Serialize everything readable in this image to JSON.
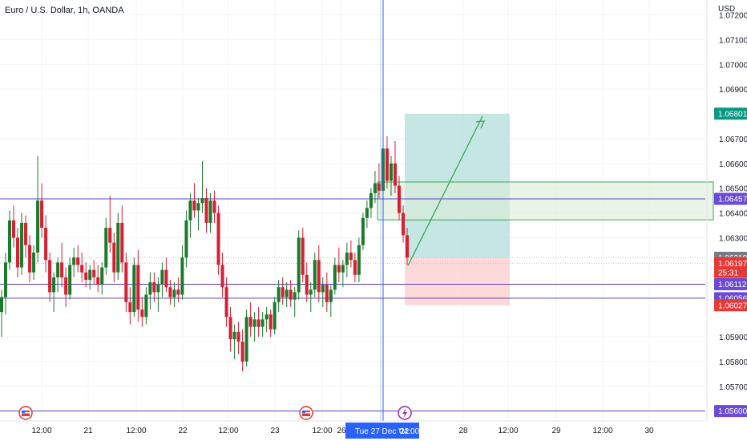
{
  "header": {
    "symbol_title": "Euro / U.S. Dollar, 1h, OANDA",
    "currency": "USD"
  },
  "colors": {
    "up": "#089981",
    "down": "#f23645",
    "candle_up": "#1b7a2b",
    "candle_down": "#d61f33",
    "level_line": "#5b3fc7",
    "label_purple": "#6b4ad6",
    "label_green": "#089981",
    "label_red": "#e53935",
    "label_gray": "#787b86",
    "crosshair": "#2962ff",
    "target_zone": "#b2dfdb",
    "stop_zone": "#fdd5d5",
    "demand_zone": "#dcefd9"
  },
  "icons": [
    "us-flag-icon",
    "us-flag-icon",
    "lightning-event-icon"
  ],
  "chart_data": {
    "type": "candlestick",
    "title": "Euro / U.S. Dollar, 1h, OANDA",
    "ylim": [
      1.0556,
      1.0726
    ],
    "y_ticks": [
      "1.07200",
      "1.07100",
      "1.07000",
      "1.06900",
      "1.06700",
      "1.06600",
      "1.06500",
      "1.06400",
      "1.06300",
      "1.05900",
      "1.05800",
      "1.05700"
    ],
    "x_ticks": [
      "12:00",
      "21",
      "12:00",
      "22",
      "12:00",
      "23",
      "12:00",
      "26",
      "28",
      "12:00",
      "29",
      "12:00",
      "30"
    ],
    "crosshair_label": "Tue 27 Dec '22",
    "crosshair_time": "04:00",
    "price_labels": [
      {
        "text": "1.06801",
        "price": 1.06801,
        "kind": "green"
      },
      {
        "text": "1.06457",
        "price": 1.06457,
        "kind": "purple"
      },
      {
        "text": "1.06219",
        "price": 1.06219,
        "kind": "gray"
      },
      {
        "text": "1.06197",
        "price": 1.06197,
        "kind": "red",
        "extra": "25:31"
      },
      {
        "text": "1.06112",
        "price": 1.06112,
        "kind": "purple"
      },
      {
        "text": "1.06056",
        "price": 1.06056,
        "kind": "purple"
      },
      {
        "text": "1.06027",
        "price": 1.06027,
        "kind": "red"
      },
      {
        "text": "1.05600",
        "price": 1.056,
        "kind": "purple"
      }
    ],
    "horizontal_levels": [
      1.06457,
      1.06112,
      1.06056,
      1.056
    ],
    "long_position": {
      "entry": 1.06219,
      "target": 1.06801,
      "stop": 1.06027
    },
    "demand_zone": {
      "top": 1.06525,
      "bottom": 1.06372
    },
    "candles": [
      [
        1.06,
        1.0609,
        1.059,
        1.0606
      ],
      [
        1.0606,
        1.0624,
        1.0599,
        1.062
      ],
      [
        1.062,
        1.0641,
        1.0617,
        1.0637
      ],
      [
        1.0637,
        1.0643,
        1.0626,
        1.063
      ],
      [
        1.063,
        1.0634,
        1.0614,
        1.0618
      ],
      [
        1.0618,
        1.064,
        1.0615,
        1.0636
      ],
      [
        1.0636,
        1.0639,
        1.0622,
        1.0627
      ],
      [
        1.0627,
        1.0631,
        1.0612,
        1.0616
      ],
      [
        1.0616,
        1.0627,
        1.0613,
        1.0624
      ],
      [
        1.0624,
        1.0663,
        1.062,
        1.0645
      ],
      [
        1.0645,
        1.0652,
        1.063,
        1.0634
      ],
      [
        1.0634,
        1.0639,
        1.0616,
        1.0621
      ],
      [
        1.0621,
        1.0624,
        1.0604,
        1.0608
      ],
      [
        1.0608,
        1.0616,
        1.06,
        1.0614
      ],
      [
        1.0614,
        1.0622,
        1.0608,
        1.062
      ],
      [
        1.062,
        1.0628,
        1.061,
        1.0614
      ],
      [
        1.0614,
        1.0618,
        1.0602,
        1.0607
      ],
      [
        1.0607,
        1.0622,
        1.0605,
        1.0619
      ],
      [
        1.0619,
        1.0626,
        1.0614,
        1.0622
      ],
      [
        1.0622,
        1.0627,
        1.0616,
        1.0619
      ],
      [
        1.0619,
        1.0624,
        1.0612,
        1.0616
      ],
      [
        1.0616,
        1.062,
        1.061,
        1.0613
      ],
      [
        1.0613,
        1.0619,
        1.0609,
        1.0617
      ],
      [
        1.0617,
        1.0621,
        1.0611,
        1.0614
      ],
      [
        1.0614,
        1.0619,
        1.0608,
        1.0611
      ],
      [
        1.0611,
        1.062,
        1.0607,
        1.0618
      ],
      [
        1.0618,
        1.0638,
        1.0615,
        1.0634
      ],
      [
        1.0634,
        1.0647,
        1.0624,
        1.0628
      ],
      [
        1.0628,
        1.0632,
        1.0612,
        1.0616
      ],
      [
        1.0616,
        1.064,
        1.0613,
        1.0636
      ],
      [
        1.0636,
        1.0643,
        1.0616,
        1.062
      ],
      [
        1.062,
        1.0624,
        1.06,
        1.0604
      ],
      [
        1.0604,
        1.061,
        1.0595,
        1.06
      ],
      [
        1.06,
        1.0622,
        1.0598,
        1.0619
      ],
      [
        1.0619,
        1.0625,
        1.0596,
        1.0601
      ],
      [
        1.0601,
        1.0606,
        1.0594,
        1.0598
      ],
      [
        1.0598,
        1.061,
        1.0595,
        1.0607
      ],
      [
        1.0607,
        1.0616,
        1.0601,
        1.0612
      ],
      [
        1.0612,
        1.0616,
        1.0604,
        1.0608
      ],
      [
        1.0608,
        1.0614,
        1.06,
        1.0611
      ],
      [
        1.0611,
        1.062,
        1.0606,
        1.0617
      ],
      [
        1.0617,
        1.0622,
        1.0608,
        1.061
      ],
      [
        1.061,
        1.0613,
        1.0603,
        1.0606
      ],
      [
        1.0606,
        1.0612,
        1.0602,
        1.0609
      ],
      [
        1.0609,
        1.0614,
        1.0604,
        1.0607
      ],
      [
        1.0607,
        1.0627,
        1.0605,
        1.0622
      ],
      [
        1.0622,
        1.0641,
        1.0618,
        1.0637
      ],
      [
        1.0637,
        1.0648,
        1.063,
        1.0645
      ],
      [
        1.0645,
        1.0652,
        1.0638,
        1.0641
      ],
      [
        1.0641,
        1.0646,
        1.0633,
        1.0644
      ],
      [
        1.0644,
        1.0661,
        1.064,
        1.0646
      ],
      [
        1.0646,
        1.065,
        1.0632,
        1.0636
      ],
      [
        1.0636,
        1.0648,
        1.0632,
        1.0645
      ],
      [
        1.0645,
        1.0649,
        1.0636,
        1.064
      ],
      [
        1.064,
        1.0643,
        1.0615,
        1.0619
      ],
      [
        1.0619,
        1.0624,
        1.0606,
        1.061
      ],
      [
        1.061,
        1.0614,
        1.0594,
        1.0598
      ],
      [
        1.0598,
        1.0602,
        1.0584,
        1.0589
      ],
      [
        1.0589,
        1.0595,
        1.0581,
        1.0592
      ],
      [
        1.0592,
        1.0596,
        1.0583,
        1.0588
      ],
      [
        1.0588,
        1.0593,
        1.0576,
        1.058
      ],
      [
        1.058,
        1.0601,
        1.0578,
        1.0598
      ],
      [
        1.0598,
        1.0604,
        1.059,
        1.0594
      ],
      [
        1.0594,
        1.06,
        1.0588,
        1.0597
      ],
      [
        1.0597,
        1.0602,
        1.059,
        1.0594
      ],
      [
        1.0594,
        1.06,
        1.059,
        1.0597
      ],
      [
        1.0597,
        1.0602,
        1.0592,
        1.0599
      ],
      [
        1.0599,
        1.0601,
        1.059,
        1.0593
      ],
      [
        1.0593,
        1.0606,
        1.0591,
        1.0604
      ],
      [
        1.0604,
        1.0613,
        1.06,
        1.061
      ],
      [
        1.061,
        1.0614,
        1.0603,
        1.0606
      ],
      [
        1.0606,
        1.0612,
        1.0602,
        1.0609
      ],
      [
        1.0609,
        1.0613,
        1.0602,
        1.0605
      ],
      [
        1.0605,
        1.061,
        1.0598,
        1.0608
      ],
      [
        1.0608,
        1.0633,
        1.0605,
        1.063
      ],
      [
        1.063,
        1.0634,
        1.0612,
        1.0615
      ],
      [
        1.0615,
        1.062,
        1.0604,
        1.0607
      ],
      [
        1.0607,
        1.0612,
        1.06,
        1.0609
      ],
      [
        1.0609,
        1.0624,
        1.0606,
        1.0621
      ],
      [
        1.0621,
        1.0627,
        1.0604,
        1.0608
      ],
      [
        1.0608,
        1.0614,
        1.0602,
        1.0611
      ],
      [
        1.0611,
        1.0616,
        1.06,
        1.0604
      ],
      [
        1.0604,
        1.0611,
        1.0598,
        1.0609
      ],
      [
        1.0609,
        1.0622,
        1.0607,
        1.0619
      ],
      [
        1.0619,
        1.0626,
        1.0612,
        1.0616
      ],
      [
        1.0616,
        1.0621,
        1.061,
        1.0619
      ],
      [
        1.0619,
        1.0628,
        1.0614,
        1.0624
      ],
      [
        1.0624,
        1.0629,
        1.0618,
        1.0621
      ],
      [
        1.0621,
        1.0624,
        1.0612,
        1.0615
      ],
      [
        1.0615,
        1.063,
        1.0612,
        1.0627
      ],
      [
        1.0627,
        1.064,
        1.0625,
        1.0638
      ],
      [
        1.0638,
        1.0645,
        1.0634,
        1.0642
      ],
      [
        1.0642,
        1.065,
        1.0638,
        1.0648
      ],
      [
        1.0648,
        1.0657,
        1.0644,
        1.0652
      ],
      [
        1.0652,
        1.066,
        1.0646,
        1.0649
      ],
      [
        1.0649,
        1.0668,
        1.0645,
        1.0666
      ],
      [
        1.0666,
        1.0671,
        1.065,
        1.0653
      ],
      [
        1.0653,
        1.0663,
        1.0647,
        1.066
      ],
      [
        1.066,
        1.0669,
        1.0648,
        1.0651
      ],
      [
        1.0651,
        1.0655,
        1.0637,
        1.064
      ],
      [
        1.064,
        1.0643,
        1.0628,
        1.0631
      ],
      [
        1.0631,
        1.0634,
        1.0619,
        1.0622
      ]
    ]
  }
}
